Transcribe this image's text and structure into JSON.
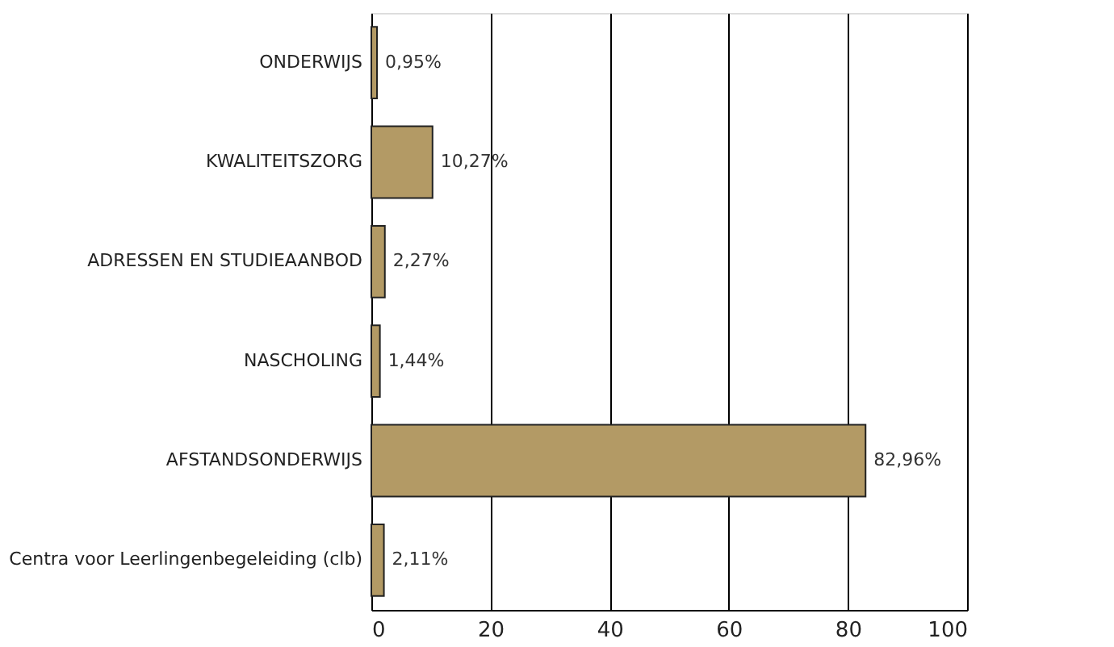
{
  "chart_data": {
    "type": "bar",
    "orientation": "horizontal",
    "categories": [
      "ONDERWIJS",
      "KWALITEITSZORG",
      "ADRESSEN EN STUDIEAANBOD",
      "NASCHOLING",
      "AFSTANDSONDERWIJS",
      "Centra voor Leerlingenbegeleiding (clb)"
    ],
    "values": [
      0.95,
      10.27,
      2.27,
      1.44,
      82.96,
      2.11
    ],
    "value_labels": [
      "0,95%",
      "10,27%",
      "2,27%",
      "1,44%",
      "82,96%",
      "2,11%"
    ],
    "color": "#b39a65",
    "xlim": [
      0,
      100
    ],
    "xticks": [
      0,
      20,
      40,
      60,
      80,
      100
    ],
    "grid": "x"
  }
}
